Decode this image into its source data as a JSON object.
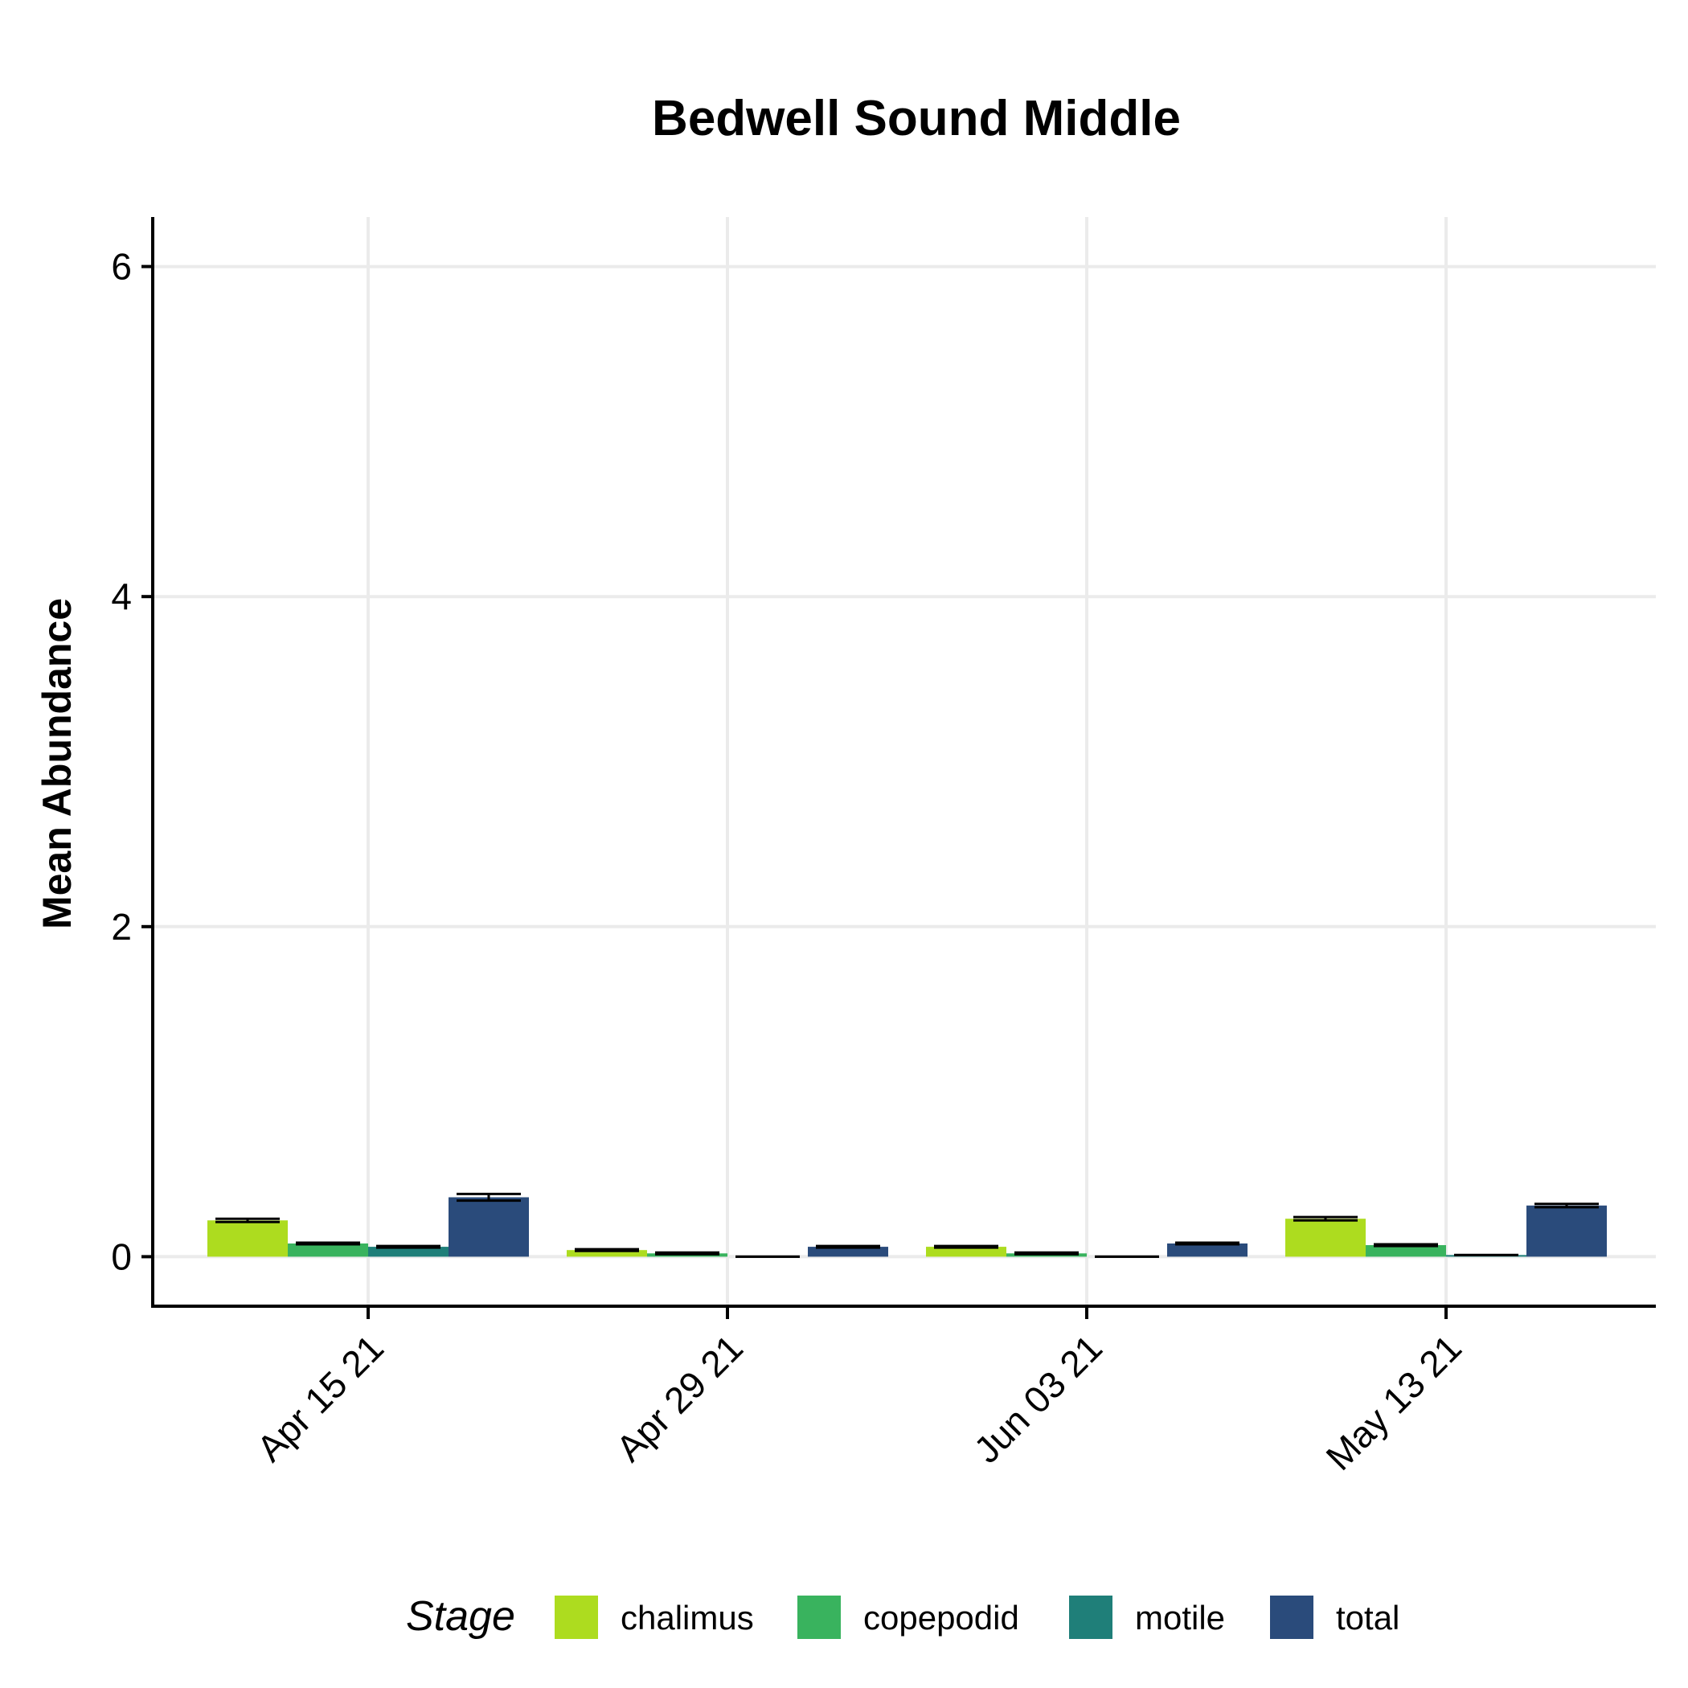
{
  "chart_data": {
    "type": "bar",
    "title": "Bedwell Sound Middle",
    "xlabel": "",
    "ylabel": "Mean Abundance",
    "categories": [
      "Apr 15 21",
      "Apr 29 21",
      "Jun 03 21",
      "May 13 21"
    ],
    "ylim": [
      -0.3,
      6.3
    ],
    "yticks": [
      0,
      2,
      4,
      6
    ],
    "grid": true,
    "legend": {
      "title": "Stage",
      "position": "bottom"
    },
    "series": [
      {
        "name": "chalimus",
        "color": "#addc1f",
        "values": [
          0.22,
          0.04,
          0.06,
          0.23
        ],
        "errors": [
          0.01,
          0.005,
          0.005,
          0.01
        ]
      },
      {
        "name": "copepodid",
        "color": "#39b35e",
        "values": [
          0.08,
          0.02,
          0.02,
          0.07
        ],
        "errors": [
          0.005,
          0.005,
          0.005,
          0.005
        ]
      },
      {
        "name": "motile",
        "color": "#1f7f79",
        "values": [
          0.06,
          0.0,
          0.0,
          0.01
        ],
        "errors": [
          0.005,
          0.0,
          0.0,
          0.0
        ]
      },
      {
        "name": "total",
        "color": "#2a4b7b",
        "values": [
          0.36,
          0.06,
          0.08,
          0.31
        ],
        "errors": [
          0.02,
          0.005,
          0.005,
          0.01
        ]
      }
    ]
  }
}
